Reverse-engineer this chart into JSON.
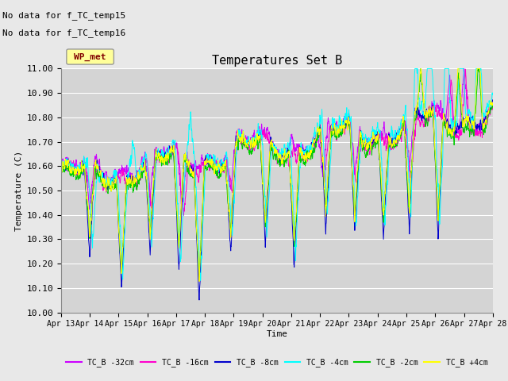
{
  "title": "Temperatures Set B",
  "xlabel": "Time",
  "ylabel": "Temperature (C)",
  "ylim": [
    10.0,
    11.0
  ],
  "yticks": [
    10.0,
    10.1,
    10.2,
    10.3,
    10.4,
    10.5,
    10.6,
    10.7,
    10.8,
    10.9,
    11.0
  ],
  "date_labels": [
    "Apr 13",
    "Apr 14",
    "Apr 15",
    "Apr 16",
    "Apr 17",
    "Apr 18",
    "Apr 19",
    "Apr 20",
    "Apr 21",
    "Apr 22",
    "Apr 23",
    "Apr 24",
    "Apr 25",
    "Apr 26",
    "Apr 27",
    "Apr 28"
  ],
  "annotations": [
    "No data for f_TC_temp15",
    "No data for f_TC_temp16"
  ],
  "legend_label": "WP_met",
  "legend_box_color": "#ffff99",
  "legend_text_color": "#800000",
  "series_labels": [
    "TC_B -32cm",
    "TC_B -16cm",
    "TC_B -8cm",
    "TC_B -4cm",
    "TC_B -2cm",
    "TC_B +4cm"
  ],
  "series_colors": [
    "#cc00ff",
    "#ff00cc",
    "#0000cc",
    "#00ffff",
    "#00cc00",
    "#ffff00"
  ],
  "fig_bg_color": "#e8e8e8",
  "plot_bg_color": "#d4d4d4",
  "grid_color": "#ffffff",
  "n_points": 2000,
  "seed": 42
}
